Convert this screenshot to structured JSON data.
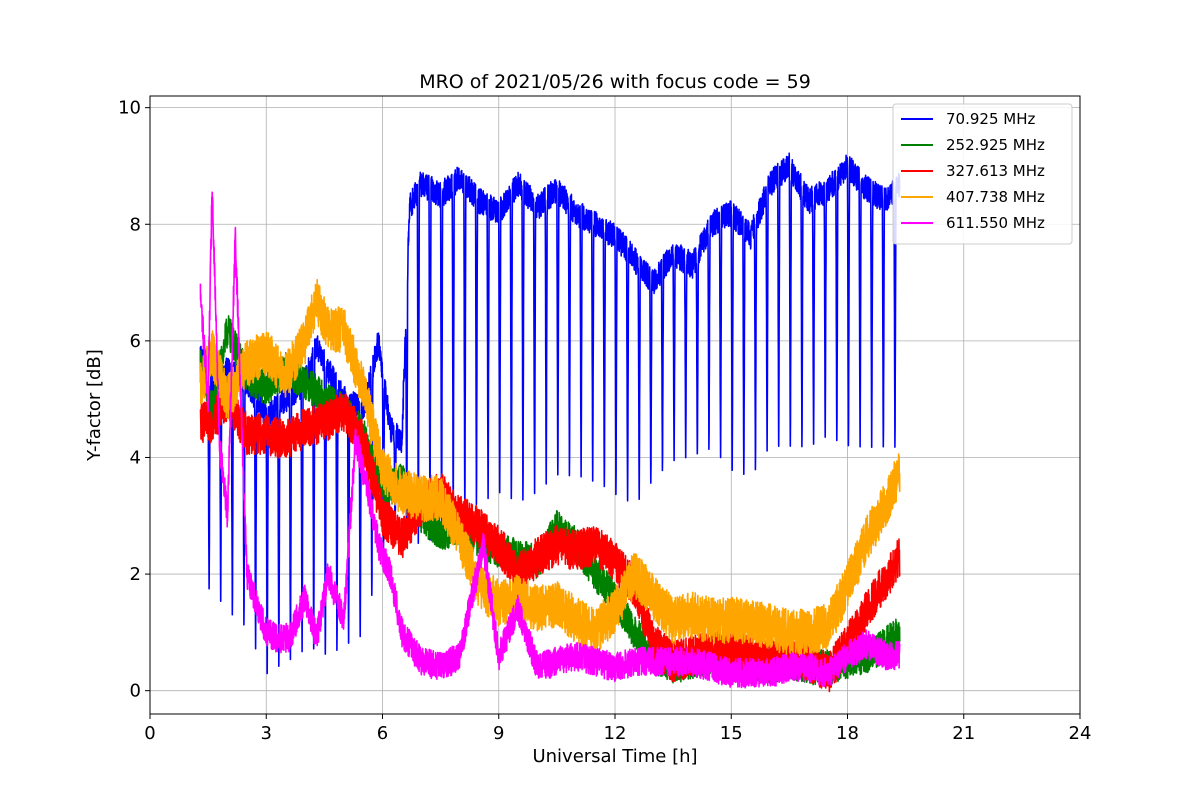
{
  "chart_data": {
    "type": "line",
    "title": "MRO of 2021/05/26 with focus code = 59",
    "xlabel": "Universal Time [h]",
    "ylabel": "Y-factor [dB]",
    "xlim": [
      0,
      24
    ],
    "ylim": [
      -0.4,
      10.2
    ],
    "xticks": [
      0,
      3,
      6,
      9,
      12,
      15,
      18,
      21,
      24
    ],
    "yticks": [
      0,
      2,
      4,
      6,
      8,
      10
    ],
    "grid": true,
    "legend_position": "top-right",
    "series": [
      {
        "name": " 70.925 MHz",
        "color": "#0000ff",
        "style": "periodic_dips",
        "dip_period_h": 0.3,
        "dip_start_h": 1.5,
        "x": [
          1.3,
          1.6,
          2.0,
          2.5,
          3.0,
          3.5,
          4.0,
          4.3,
          4.6,
          5.0,
          5.5,
          5.9,
          6.2,
          6.5,
          6.7,
          7.0,
          7.5,
          8.0,
          8.5,
          9.0,
          9.5,
          10.0,
          10.5,
          11.0,
          11.5,
          12.0,
          12.5,
          13.0,
          13.5,
          14.0,
          14.5,
          15.0,
          15.5,
          16.0,
          16.5,
          17.0,
          17.5,
          18.0,
          18.5,
          19.0,
          19.35
        ],
        "y": [
          5.8,
          5.2,
          5.5,
          5.3,
          4.7,
          5.0,
          5.3,
          5.9,
          5.5,
          5.0,
          4.8,
          6.0,
          4.5,
          4.3,
          8.3,
          8.7,
          8.5,
          8.8,
          8.4,
          8.2,
          8.7,
          8.3,
          8.6,
          8.2,
          8.0,
          7.8,
          7.4,
          7.0,
          7.5,
          7.3,
          8.0,
          8.2,
          7.8,
          8.7,
          9.0,
          8.4,
          8.6,
          9.0,
          8.6,
          8.4,
          8.7
        ],
        "dip_min": [
          1.6,
          1.6,
          1.2,
          0.9,
          0.1,
          0.3,
          0.5,
          0.5,
          0.4,
          0.6,
          0.8,
          2.0,
          2.5,
          2.8,
          2.5,
          2.2,
          2.5,
          2.8,
          3.0,
          3.2,
          3.0,
          3.2,
          3.5,
          3.5,
          3.4,
          3.2,
          3.0,
          3.5,
          3.8,
          3.9,
          4.0,
          3.6,
          3.5,
          4.0,
          4.0,
          4.0,
          4.2,
          4.0,
          4.0,
          4.0,
          4.0
        ]
      },
      {
        "name": "252.925 MHz",
        "color": "#008000",
        "style": "noisy",
        "x": [
          1.3,
          1.6,
          2.0,
          2.5,
          3.0,
          3.5,
          4.0,
          4.5,
          5.0,
          5.5,
          6.0,
          6.5,
          7.0,
          7.5,
          8.0,
          8.5,
          9.0,
          9.5,
          10.0,
          10.5,
          11.0,
          11.5,
          12.0,
          12.5,
          13.0,
          13.5,
          14.0,
          14.5,
          15.0,
          15.5,
          16.0,
          16.5,
          17.0,
          17.5,
          18.0,
          18.5,
          19.0,
          19.35
        ],
        "y": [
          5.6,
          4.8,
          6.2,
          5.4,
          5.2,
          5.5,
          5.3,
          5.0,
          4.8,
          4.4,
          3.4,
          3.6,
          3.0,
          2.7,
          2.8,
          2.6,
          2.4,
          2.3,
          2.2,
          2.8,
          2.5,
          2.0,
          1.6,
          1.0,
          0.6,
          0.4,
          0.5,
          0.6,
          0.5,
          0.5,
          0.4,
          0.5,
          0.4,
          0.4,
          0.5,
          0.6,
          0.8,
          1.0
        ],
        "noise": 0.3
      },
      {
        "name": "327.613 MHz",
        "color": "#ff0000",
        "style": "noisy",
        "x": [
          1.3,
          1.6,
          2.0,
          2.5,
          3.0,
          3.5,
          4.0,
          4.5,
          5.0,
          5.5,
          6.0,
          6.5,
          7.0,
          7.5,
          8.0,
          8.5,
          9.0,
          9.5,
          10.0,
          10.5,
          11.0,
          11.5,
          12.0,
          12.5,
          13.0,
          13.5,
          14.0,
          14.5,
          15.0,
          15.5,
          16.0,
          16.5,
          17.0,
          17.5,
          18.0,
          18.5,
          19.0,
          19.35
        ],
        "y": [
          4.6,
          4.6,
          5.0,
          4.4,
          4.4,
          4.3,
          4.5,
          4.6,
          4.8,
          4.3,
          3.0,
          2.6,
          3.2,
          3.4,
          3.0,
          2.8,
          2.5,
          2.0,
          2.3,
          2.5,
          2.4,
          2.5,
          2.2,
          1.8,
          0.8,
          0.5,
          0.6,
          0.7,
          0.7,
          0.6,
          0.5,
          0.6,
          0.5,
          0.3,
          0.8,
          1.4,
          1.9,
          2.3
        ],
        "noise": 0.35
      },
      {
        "name": "407.738 MHz",
        "color": "#ffa500",
        "style": "noisy",
        "x": [
          1.3,
          1.6,
          2.0,
          2.5,
          3.0,
          3.5,
          4.0,
          4.3,
          4.6,
          5.0,
          5.5,
          6.0,
          6.5,
          7.0,
          7.5,
          8.0,
          8.5,
          9.0,
          9.5,
          10.0,
          10.5,
          11.0,
          11.5,
          12.0,
          12.5,
          13.0,
          13.5,
          14.0,
          14.5,
          15.0,
          15.5,
          16.0,
          16.5,
          17.0,
          17.5,
          18.0,
          18.5,
          19.0,
          19.35
        ],
        "y": [
          5.2,
          5.8,
          5.0,
          5.6,
          5.8,
          5.4,
          6.0,
          6.7,
          6.2,
          6.2,
          5.2,
          3.8,
          3.4,
          3.3,
          3.3,
          2.6,
          1.8,
          1.5,
          1.6,
          1.4,
          1.5,
          1.2,
          1.0,
          1.4,
          2.0,
          1.6,
          1.2,
          1.3,
          1.2,
          1.2,
          1.2,
          1.1,
          1.0,
          1.0,
          1.1,
          1.8,
          2.6,
          3.2,
          3.8
        ],
        "noise": 0.4
      },
      {
        "name": "611.550 MHz",
        "color": "#ff00ff",
        "style": "noisy",
        "x": [
          1.3,
          1.5,
          1.6,
          1.8,
          2.0,
          2.2,
          2.5,
          2.8,
          3.0,
          3.3,
          3.6,
          4.0,
          4.3,
          4.6,
          5.0,
          5.3,
          5.6,
          5.9,
          6.2,
          6.5,
          7.0,
          7.5,
          8.0,
          8.3,
          8.6,
          9.0,
          9.5,
          10.0,
          10.5,
          11.0,
          11.5,
          12.0,
          12.5,
          13.0,
          13.5,
          14.0,
          14.5,
          15.0,
          15.5,
          16.0,
          16.5,
          17.0,
          17.5,
          18.0,
          18.5,
          19.0,
          19.35
        ],
        "y": [
          6.8,
          5.0,
          8.6,
          4.2,
          3.0,
          7.8,
          2.0,
          1.4,
          1.0,
          0.9,
          0.9,
          1.6,
          0.9,
          2.0,
          1.2,
          4.3,
          3.5,
          2.5,
          2.0,
          1.0,
          0.5,
          0.4,
          0.6,
          1.6,
          2.5,
          0.6,
          1.4,
          0.4,
          0.5,
          0.6,
          0.5,
          0.4,
          0.5,
          0.5,
          0.5,
          0.5,
          0.4,
          0.3,
          0.3,
          0.3,
          0.4,
          0.4,
          0.3,
          0.6,
          0.8,
          0.6,
          0.6
        ],
        "noise": 0.25
      }
    ]
  }
}
